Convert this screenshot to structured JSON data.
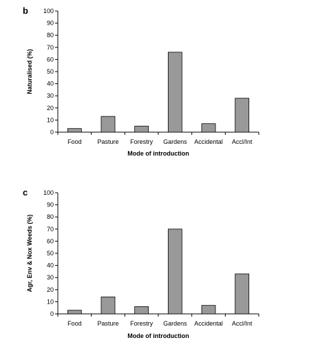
{
  "colors": {
    "bar_fill": "#999999",
    "bar_stroke": "#000000",
    "axis": "#000000"
  },
  "chart_data": [
    {
      "type": "bar",
      "panel_label": "b",
      "categories": [
        "Food",
        "Pasture",
        "Forestry",
        "Gardens",
        "Accidental",
        "Accl/Int"
      ],
      "values": [
        3,
        13,
        5,
        66,
        7,
        28
      ],
      "xlabel": "Mode of introduction",
      "ylabel": "Naturalised (%)",
      "ylim": [
        0,
        100
      ],
      "yticks": [
        0,
        10,
        20,
        30,
        40,
        50,
        60,
        70,
        80,
        90,
        100
      ],
      "grid": false
    },
    {
      "type": "bar",
      "panel_label": "c",
      "categories": [
        "Food",
        "Pasture",
        "Forestry",
        "Gardens",
        "Accidental",
        "Accl/Int"
      ],
      "values": [
        3,
        14,
        6,
        70,
        7,
        33
      ],
      "xlabel": "Mode of introduction",
      "ylabel": "Agr, Env & Nox Weeds (%)",
      "ylim": [
        0,
        100
      ],
      "yticks": [
        0,
        10,
        20,
        30,
        40,
        50,
        60,
        70,
        80,
        90,
        100
      ],
      "grid": false
    }
  ]
}
